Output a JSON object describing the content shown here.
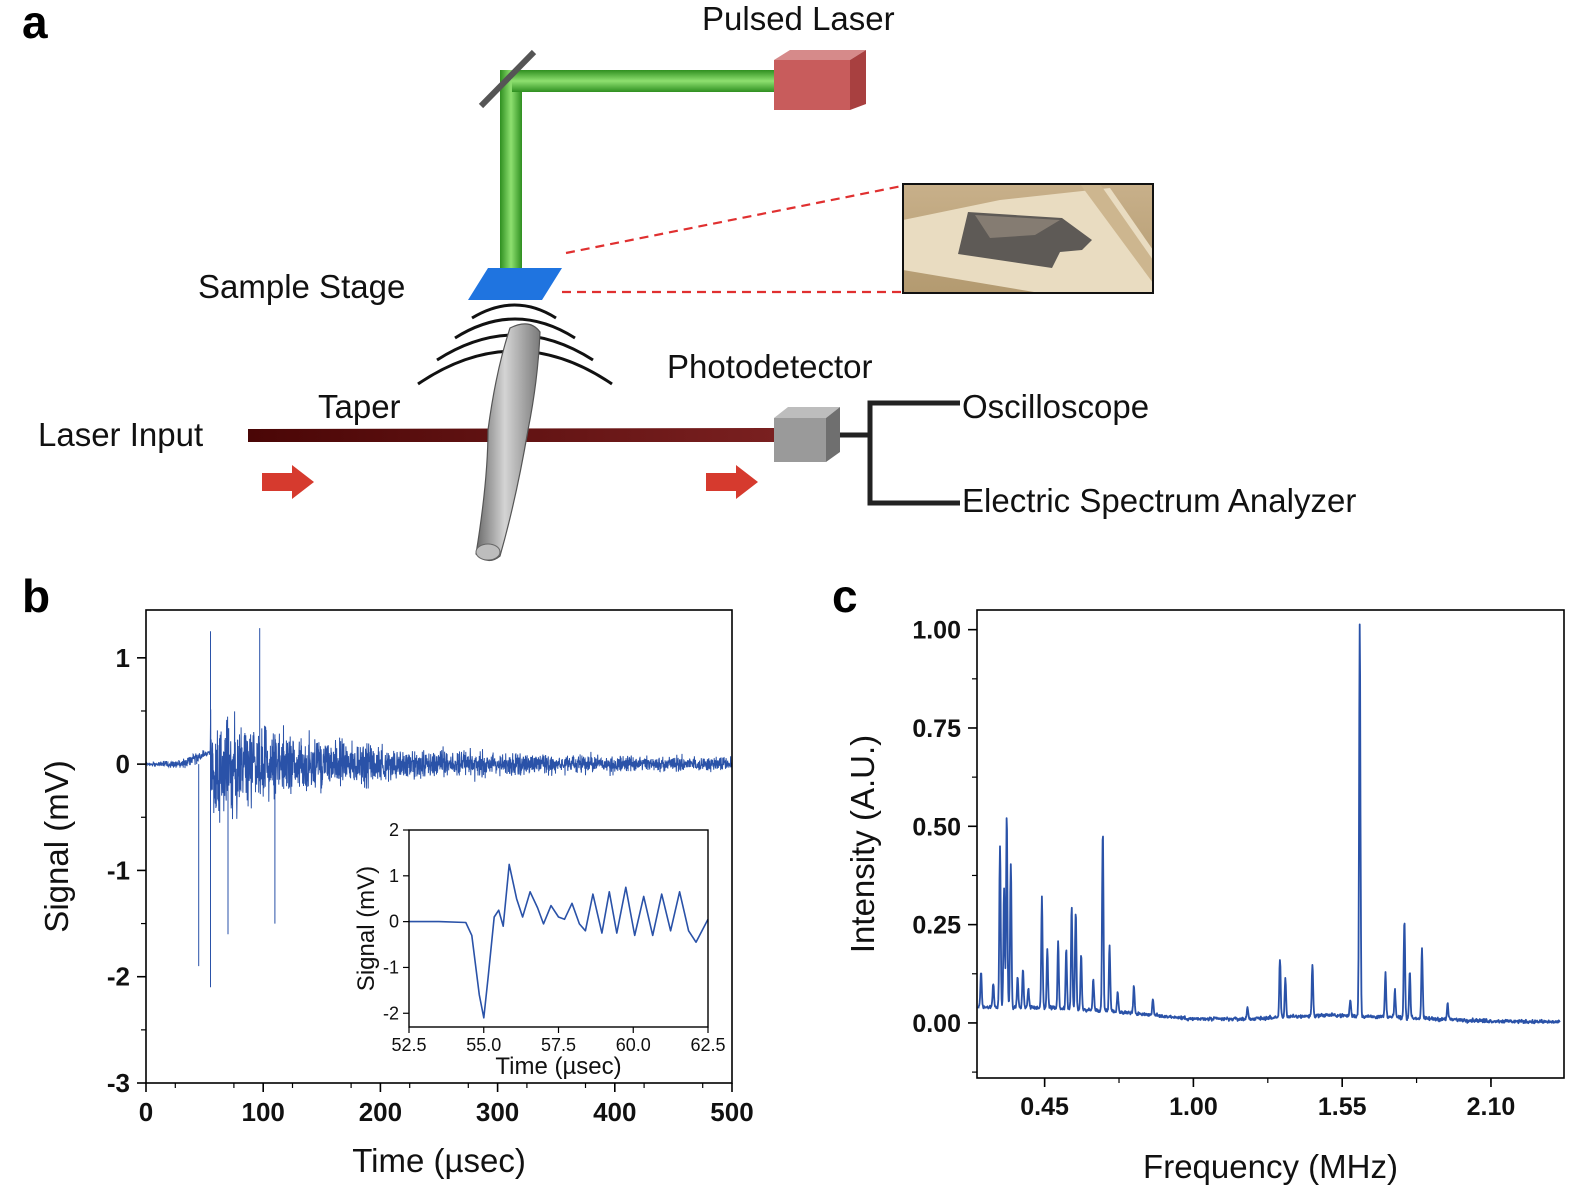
{
  "panels": {
    "a": "a",
    "b": "b",
    "c": "c"
  },
  "diagram": {
    "pulsed_laser": "Pulsed Laser",
    "sample_stage": "Sample Stage",
    "photodetector": "Photodetector",
    "taper": "Taper",
    "laser_input": "Laser Input",
    "oscilloscope": "Oscilloscope",
    "esa": "Electric Spectrum Analyzer"
  },
  "colors": {
    "trace": "#2a52a8",
    "green_beam": "#44b02c",
    "laser_box": "#c85c5c",
    "stage": "#1f74e0",
    "arrow": "#d63a2e",
    "fiber": "#5a0e0e"
  },
  "chart_data": [
    {
      "type": "line",
      "id": "b",
      "xlabel": "Time (µsec)",
      "ylabel": "Signal (mV)",
      "xlim": [
        0,
        500
      ],
      "ylim": [
        -3,
        1.45
      ],
      "xticks": [
        0,
        100,
        200,
        300,
        400,
        500
      ],
      "xtick_labels": [
        "0",
        "100",
        "200",
        "300",
        "400",
        "500"
      ],
      "yticks": [
        -3,
        -2,
        -1,
        0,
        1
      ],
      "ytick_labels": [
        "-3",
        "-2",
        "-1",
        "0",
        "1"
      ],
      "envelope": {
        "onset": 55,
        "peak_amp": 1.1,
        "decay_to": 0.25
      },
      "spikes": [
        [
          55,
          -2.1
        ],
        [
          55,
          1.25
        ],
        [
          97,
          1.28
        ],
        [
          70,
          -1.6
        ],
        [
          110,
          -1.5
        ],
        [
          45,
          -1.9
        ]
      ],
      "inset": {
        "xlabel": "Time (µsec)",
        "ylabel": "Signal (mV)",
        "xlim": [
          52.5,
          62.5
        ],
        "ylim": [
          -2.3,
          2
        ],
        "xticks": [
          52.5,
          55.0,
          57.5,
          60.0,
          62.5
        ],
        "xtick_labels": [
          "52.5",
          "55.0",
          "57.5",
          "60.0",
          "62.5"
        ],
        "yticks": [
          -2,
          -1,
          0,
          1,
          2
        ],
        "ytick_labels": [
          "-2",
          "-1",
          "0",
          "1",
          "2"
        ],
        "points": [
          [
            52.5,
            0
          ],
          [
            53.5,
            0
          ],
          [
            54.4,
            -0.02
          ],
          [
            54.6,
            -0.3
          ],
          [
            54.85,
            -1.6
          ],
          [
            55.0,
            -2.1
          ],
          [
            55.15,
            -1.2
          ],
          [
            55.35,
            0.1
          ],
          [
            55.5,
            0.25
          ],
          [
            55.65,
            -0.1
          ],
          [
            55.85,
            1.25
          ],
          [
            56.1,
            0.5
          ],
          [
            56.3,
            0.1
          ],
          [
            56.55,
            0.65
          ],
          [
            56.8,
            0.3
          ],
          [
            57.0,
            -0.05
          ],
          [
            57.25,
            0.35
          ],
          [
            57.5,
            0.1
          ],
          [
            57.7,
            0.05
          ],
          [
            57.95,
            0.4
          ],
          [
            58.2,
            -0.05
          ],
          [
            58.4,
            -0.2
          ],
          [
            58.65,
            0.6
          ],
          [
            58.95,
            -0.25
          ],
          [
            59.2,
            0.65
          ],
          [
            59.45,
            -0.25
          ],
          [
            59.75,
            0.75
          ],
          [
            60.05,
            -0.3
          ],
          [
            60.35,
            0.55
          ],
          [
            60.65,
            -0.3
          ],
          [
            60.95,
            0.6
          ],
          [
            61.25,
            -0.2
          ],
          [
            61.55,
            0.65
          ],
          [
            61.85,
            -0.2
          ],
          [
            62.1,
            -0.45
          ],
          [
            62.5,
            0.05
          ]
        ]
      }
    },
    {
      "type": "line",
      "id": "c",
      "xlabel": "Frequency (MHz)",
      "ylabel": "Intensity (A.U.)",
      "xlim": [
        0.2,
        2.37
      ],
      "ylim": [
        -0.14,
        1.05
      ],
      "xticks": [
        0.45,
        1.0,
        1.55,
        2.1
      ],
      "xtick_labels": [
        "0.45",
        "1.00",
        "1.55",
        "2.10"
      ],
      "yticks": [
        0,
        0.25,
        0.5,
        0.75,
        1.0
      ],
      "ytick_labels": [
        "0.00",
        "0.25",
        "0.50",
        "0.75",
        "1.00"
      ],
      "peaks": [
        [
          0.215,
          0.09
        ],
        [
          0.26,
          0.06
        ],
        [
          0.285,
          0.41
        ],
        [
          0.3,
          0.3
        ],
        [
          0.31,
          0.49
        ],
        [
          0.325,
          0.37
        ],
        [
          0.35,
          0.08
        ],
        [
          0.37,
          0.1
        ],
        [
          0.39,
          0.05
        ],
        [
          0.44,
          0.28
        ],
        [
          0.46,
          0.15
        ],
        [
          0.5,
          0.17
        ],
        [
          0.53,
          0.15
        ],
        [
          0.55,
          0.26
        ],
        [
          0.565,
          0.25
        ],
        [
          0.585,
          0.14
        ],
        [
          0.63,
          0.08
        ],
        [
          0.665,
          0.46
        ],
        [
          0.69,
          0.17
        ],
        [
          0.72,
          0.05
        ],
        [
          0.78,
          0.07
        ],
        [
          0.85,
          0.04
        ],
        [
          1.2,
          0.03
        ],
        [
          1.32,
          0.15
        ],
        [
          1.34,
          0.1
        ],
        [
          1.44,
          0.13
        ],
        [
          1.58,
          0.04
        ],
        [
          1.615,
          1.0
        ],
        [
          1.71,
          0.11
        ],
        [
          1.745,
          0.07
        ],
        [
          1.78,
          0.25
        ],
        [
          1.8,
          0.12
        ],
        [
          1.845,
          0.18
        ],
        [
          1.94,
          0.04
        ]
      ],
      "baseline": [
        [
          0.2,
          0.04
        ],
        [
          0.4,
          0.04
        ],
        [
          0.7,
          0.03
        ],
        [
          1.0,
          0.01
        ],
        [
          1.2,
          0.01
        ],
        [
          1.5,
          0.02
        ],
        [
          1.9,
          0.01
        ],
        [
          2.1,
          0.005
        ],
        [
          2.37,
          0.002
        ]
      ]
    }
  ]
}
